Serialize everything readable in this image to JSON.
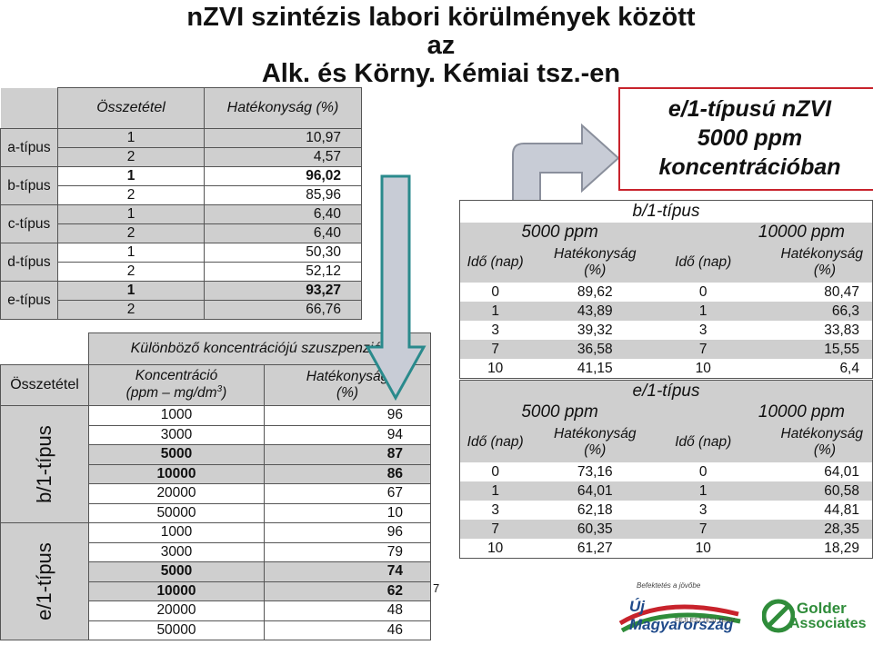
{
  "title_line1": "nZVI szintézis labori körülmények között az",
  "title_line2": "Alk. és Körny. Kémiai tsz.-en",
  "table1": {
    "header_composition": "Összetétel",
    "header_efficiency": "Hatékonyság (%)",
    "groups": [
      {
        "label": "a-típus",
        "rows": [
          {
            "n": "1",
            "v": "10,97"
          },
          {
            "n": "2",
            "v": "4,57"
          }
        ]
      },
      {
        "label": "b-típus",
        "rows": [
          {
            "n": "1",
            "v": "96,02"
          },
          {
            "n": "2",
            "v": "85,96"
          }
        ]
      },
      {
        "label": "c-típus",
        "rows": [
          {
            "n": "1",
            "v": "6,40"
          },
          {
            "n": "2",
            "v": "6,40"
          }
        ]
      },
      {
        "label": "d-típus",
        "rows": [
          {
            "n": "1",
            "v": "50,30"
          },
          {
            "n": "2",
            "v": "52,12"
          }
        ]
      },
      {
        "label": "e-típus",
        "rows": [
          {
            "n": "1",
            "v": "93,27"
          },
          {
            "n": "2",
            "v": "66,76"
          }
        ]
      }
    ]
  },
  "table2": {
    "caption": "Különböző koncentrációjú szuszpenziók",
    "side_label": "Összetétel",
    "header_conc_line1": "Koncentráció",
    "header_conc_line2": "(ppm – mg/dm",
    "header_conc_sup": "3",
    "header_conc_close": ")",
    "header_eff_line1": "Hatékonyság",
    "header_eff_line2": "(%)",
    "groups": [
      {
        "label": "b/1-típus",
        "rows": [
          {
            "c": "1000",
            "p": "96"
          },
          {
            "c": "3000",
            "p": "94"
          },
          {
            "c": "5000",
            "p": "87"
          },
          {
            "c": "10000",
            "p": "86"
          },
          {
            "c": "20000",
            "p": "67"
          },
          {
            "c": "50000",
            "p": "10"
          }
        ]
      },
      {
        "label": "e/1-típus",
        "rows": [
          {
            "c": "1000",
            "p": "96"
          },
          {
            "c": "3000",
            "p": "79"
          },
          {
            "c": "5000",
            "p": "74"
          },
          {
            "c": "10000",
            "p": "62"
          },
          {
            "c": "20000",
            "p": "48"
          },
          {
            "c": "50000",
            "p": "46"
          }
        ]
      }
    ]
  },
  "highlight_box": {
    "line1": "e/1-típusú nZVI",
    "line2": "5000 ppm",
    "line3": "koncentrációban"
  },
  "table3": {
    "caption": "b/1-típus",
    "ppm_a": "5000 ppm",
    "ppm_b": "10000 ppm",
    "h_time": "Idő (nap)",
    "h_eff1": "Hatékonyság",
    "h_eff2": "(%)",
    "rows": [
      {
        "d1": "0",
        "e1": "89,62",
        "d2": "0",
        "e2": "80,47"
      },
      {
        "d1": "1",
        "e1": "43,89",
        "d2": "1",
        "e2": "66,3"
      },
      {
        "d1": "3",
        "e1": "39,32",
        "d2": "3",
        "e2": "33,83"
      },
      {
        "d1": "7",
        "e1": "36,58",
        "d2": "7",
        "e2": "15,55"
      },
      {
        "d1": "10",
        "e1": "41,15",
        "d2": "10",
        "e2": "6,4"
      }
    ]
  },
  "table4": {
    "caption": "e/1-típus",
    "ppm_a": "5000 ppm",
    "ppm_b": "10000 ppm",
    "h_time": "Idő (nap)",
    "h_eff1": "Hatékonyság",
    "h_eff2": "(%)",
    "rows": [
      {
        "d1": "0",
        "e1": "73,16",
        "d2": "0",
        "e2": "64,01"
      },
      {
        "d1": "1",
        "e1": "64,01",
        "d2": "1",
        "e2": "60,58"
      },
      {
        "d1": "3",
        "e1": "62,18",
        "d2": "3",
        "e2": "44,81"
      },
      {
        "d1": "7",
        "e1": "60,35",
        "d2": "7",
        "e2": "28,35"
      },
      {
        "d1": "10",
        "e1": "61,27",
        "d2": "10",
        "e2": "18,29"
      }
    ]
  },
  "page_number": "7",
  "logo_umft": {
    "small": "Befektetés a jövőbe",
    "main1": "Új Magyarország",
    "main2": "FEJLESZTÉSI TERV"
  },
  "logo_golder": {
    "line1": "Golder",
    "line2": "Associates"
  },
  "colors": {
    "shade": "#cfcfcf",
    "border_red": "#c8232c",
    "arrow_fill": "#c8ccd6",
    "arrow_edge": "#2a8a8c",
    "golder_green": "#2f8c3a"
  }
}
